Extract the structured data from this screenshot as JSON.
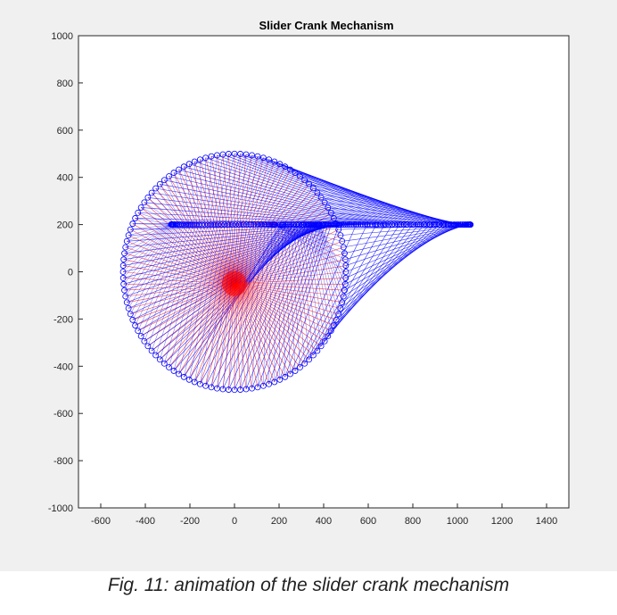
{
  "chart_data": {
    "type": "line",
    "title": "Slider Crank Mechanism",
    "xlabel": "",
    "ylabel": "",
    "xlim": [
      -700,
      1500
    ],
    "ylim": [
      -1000,
      1000
    ],
    "xticks": [
      -600,
      -400,
      -200,
      0,
      200,
      400,
      600,
      800,
      1000,
      1200,
      1400
    ],
    "yticks": [
      1000,
      800,
      600,
      400,
      200,
      0,
      -200,
      -400,
      -600,
      -800,
      -1000
    ],
    "grid": false,
    "mechanism": {
      "crank_pivot": [
        0,
        -50
      ],
      "crank_radius": 280,
      "connecting_rod_length": 500,
      "slider_path_y": 200,
      "coupler_offset": 320,
      "crank_end_orbit_center": [
        0,
        0
      ],
      "crank_end_orbit_radius": 500,
      "frames": 120
    },
    "series": [
      {
        "role": "crank-links",
        "color": "#ff0000"
      },
      {
        "role": "coupler-and-slider-links",
        "color": "#0000ff"
      }
    ]
  },
  "caption": "Fig. 11: animation of the slider crank mechanism"
}
